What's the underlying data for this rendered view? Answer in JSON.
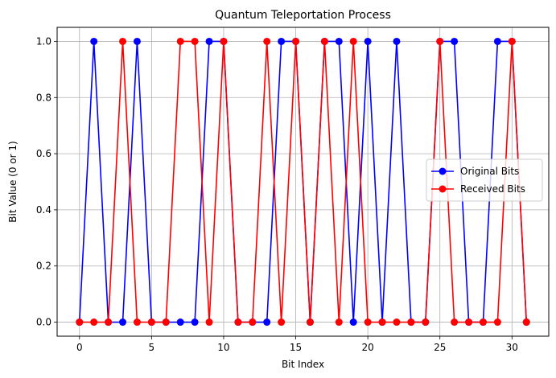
{
  "chart_data": {
    "type": "line",
    "title": "Quantum Teleportation Process",
    "xlabel": "Bit Index",
    "ylabel": "Bit Value (0 or 1)",
    "xlim": [
      -1.55,
      32.55
    ],
    "ylim": [
      -0.05,
      1.05
    ],
    "xticks": [
      0,
      5,
      10,
      15,
      20,
      25,
      30
    ],
    "yticks": [
      0.0,
      0.2,
      0.4,
      0.6,
      0.8,
      1.0
    ],
    "xtick_labels": [
      "0",
      "5",
      "10",
      "15",
      "20",
      "25",
      "30"
    ],
    "ytick_labels": [
      "0.0",
      "0.2",
      "0.4",
      "0.6",
      "0.8",
      "1.0"
    ],
    "grid": true,
    "legend_position": "center-right",
    "x": [
      0,
      1,
      2,
      3,
      4,
      5,
      6,
      7,
      8,
      9,
      10,
      11,
      12,
      13,
      14,
      15,
      16,
      17,
      18,
      19,
      20,
      21,
      22,
      23,
      24,
      25,
      26,
      27,
      28,
      29,
      30,
      31
    ],
    "series": [
      {
        "name": "Original Bits",
        "color": "#0000ff",
        "marker": "circle",
        "values": [
          0,
          1,
          0,
          0,
          1,
          0,
          0,
          0,
          0,
          1,
          1,
          0,
          0,
          0,
          1,
          1,
          0,
          1,
          1,
          0,
          1,
          0,
          1,
          0,
          0,
          1,
          1,
          0,
          0,
          1,
          1,
          0
        ]
      },
      {
        "name": "Received Bits",
        "color": "#ff0000",
        "marker": "circle",
        "values": [
          0,
          0,
          0,
          1,
          0,
          0,
          0,
          1,
          1,
          0,
          1,
          0,
          0,
          1,
          0,
          1,
          0,
          1,
          0,
          1,
          0,
          0,
          0,
          0,
          0,
          1,
          0,
          0,
          0,
          0,
          1,
          0
        ]
      }
    ]
  }
}
